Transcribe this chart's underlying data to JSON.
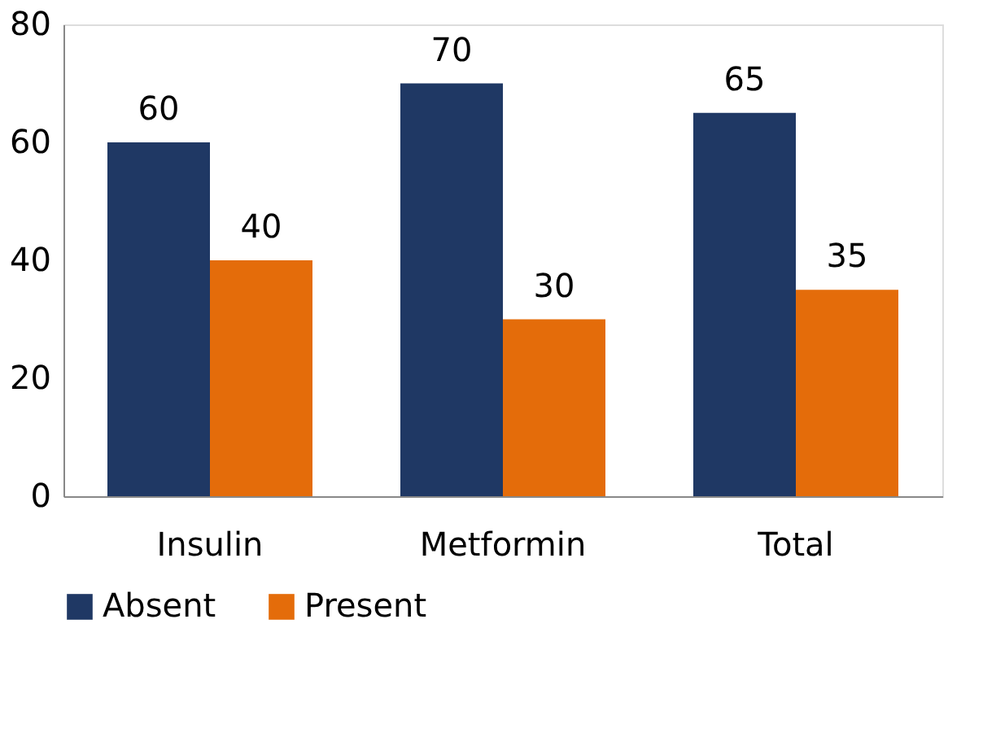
{
  "chart_data": {
    "type": "bar",
    "categories": [
      "Insulin",
      "Metformin",
      "Total"
    ],
    "series": [
      {
        "name": "Absent",
        "color": "#1f3864",
        "values": [
          60,
          70,
          65
        ]
      },
      {
        "name": "Present",
        "color": "#e46c0a",
        "values": [
          40,
          30,
          35
        ]
      }
    ],
    "ylim": [
      0,
      80
    ],
    "yticks": [
      0,
      20,
      40,
      60,
      80
    ],
    "grid": false,
    "legend": "bottom",
    "data_labels": true
  }
}
